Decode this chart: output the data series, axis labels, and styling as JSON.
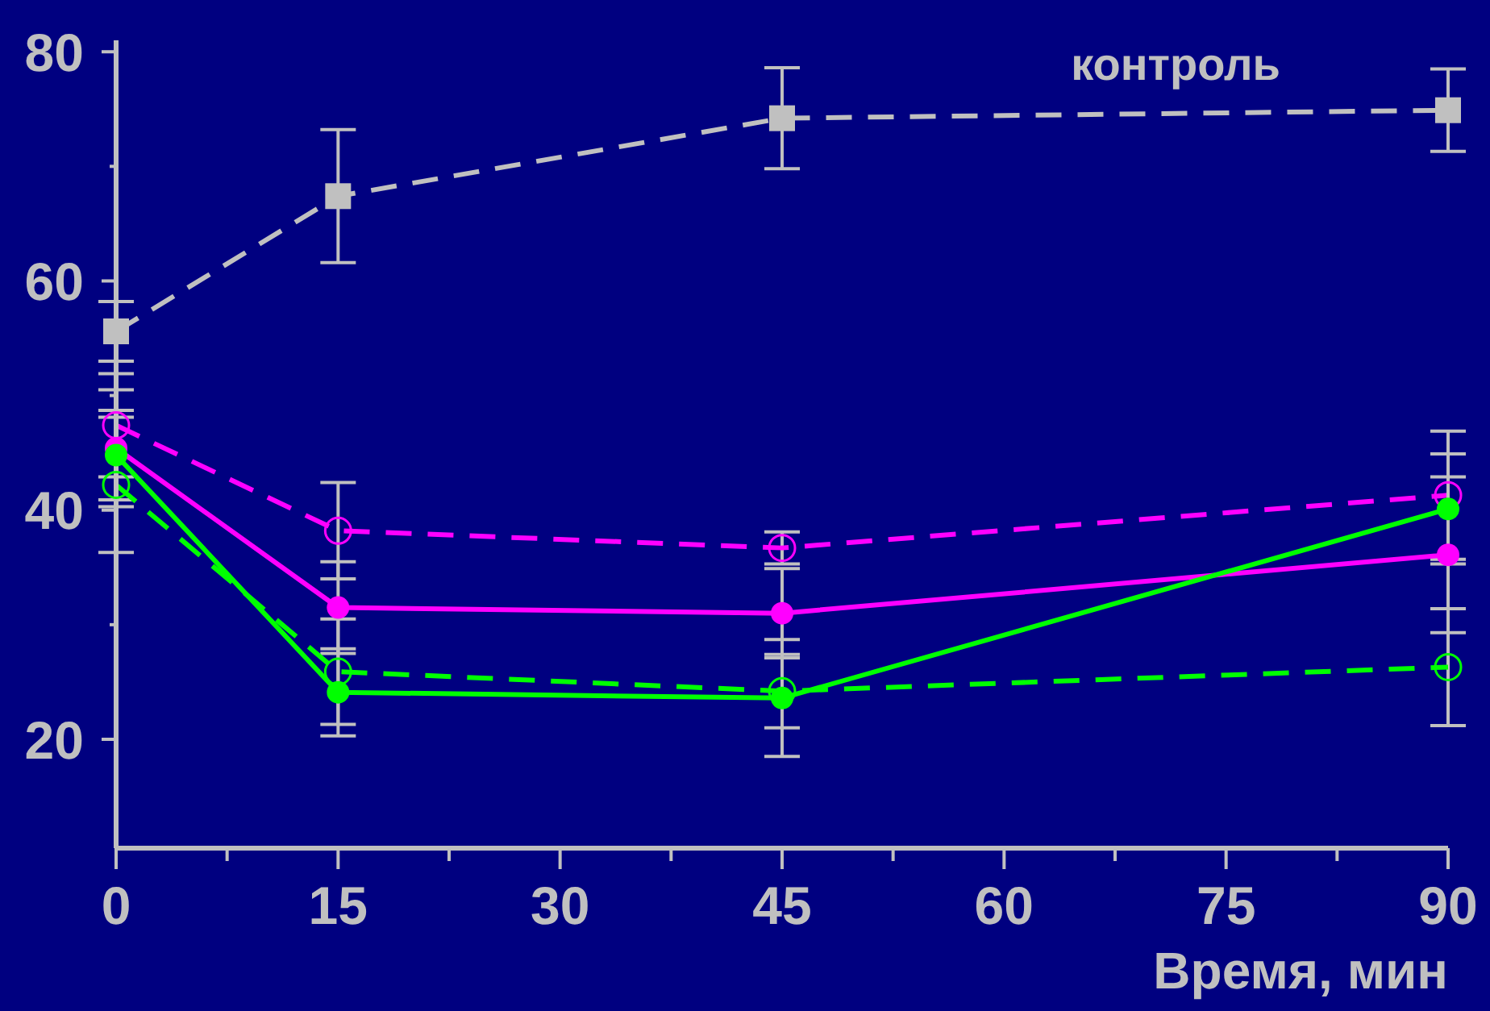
{
  "chart_data": {
    "type": "line",
    "xlabel": "Время, мин",
    "x": [
      0,
      15,
      45,
      90
    ],
    "xlim": [
      0,
      90
    ],
    "xticks": [
      0,
      {
        "value": 7.5,
        "label": null
      },
      15,
      {
        "value": 22.5,
        "label": null
      },
      30,
      {
        "value": 37.5,
        "label": null
      },
      45,
      {
        "value": 52.5,
        "label": null
      },
      60,
      {
        "value": 67.5,
        "label": null
      },
      75,
      {
        "value": 82.5,
        "label": null
      },
      90
    ],
    "ylim": [
      10.5,
      81
    ],
    "yticks": [
      20,
      {
        "value": 30,
        "label": null
      },
      40,
      {
        "value": 50,
        "label": null
      },
      60,
      {
        "value": 70,
        "label": null
      },
      80
    ],
    "series": [
      {
        "name": "контроль",
        "color": "#c0c0c0",
        "values": [
          55.6,
          67.4,
          74.2,
          74.9
        ],
        "errors": [
          2.6,
          5.8,
          4.4,
          3.6
        ],
        "marker": "square",
        "line_style": "dashed"
      },
      {
        "color": "#ff00ff",
        "values": [
          47.4,
          38.2,
          36.7,
          41.3
        ],
        "errors": [
          4.5,
          4.2,
          1.4,
          5.6
        ],
        "marker": "circle",
        "line_style": "dashed"
      },
      {
        "color": "#ff00ff",
        "values": [
          45.4,
          31.5,
          31.0,
          36.1
        ],
        "errors": [
          5.1,
          4.0,
          3.9,
          6.8
        ],
        "marker": "circle",
        "line_style": "solid"
      },
      {
        "color": "#00ff00",
        "values": [
          44.8,
          24.1,
          23.6,
          40.1
        ],
        "errors": [
          3.9,
          3.8,
          5.1,
          4.8
        ],
        "marker": "circle",
        "line_style": "solid"
      },
      {
        "color": "#00ff00",
        "values": [
          42.2,
          25.9,
          24.2,
          26.3
        ],
        "errors": [
          5.9,
          4.6,
          3.2,
          5.1
        ],
        "marker": "circle",
        "line_style": "dashed"
      }
    ]
  }
}
